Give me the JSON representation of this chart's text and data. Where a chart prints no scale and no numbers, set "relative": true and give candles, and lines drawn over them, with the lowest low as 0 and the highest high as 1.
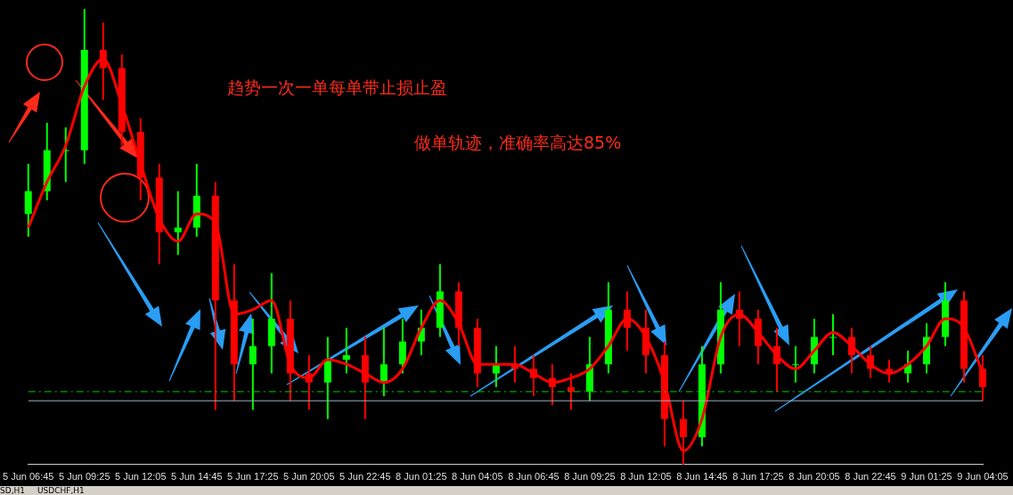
{
  "chart_data": {
    "type": "candlestick",
    "relative": true,
    "grid": false,
    "legend": false,
    "categories": [
      "5 Jun 06:45",
      null,
      null,
      "5 Jun 09:25",
      null,
      null,
      "5 Jun 12:05",
      null,
      null,
      "5 Jun 14:45",
      null,
      null,
      "5 Jun 17:25",
      null,
      null,
      "5 Jun 20:05",
      null,
      null,
      "5 Jun 22:45",
      null,
      null,
      "8 Jun 01:25",
      null,
      null,
      "8 Jun 04:05",
      null,
      null,
      "8 Jun 06:45",
      null,
      null,
      "8 Jun 09:25",
      null,
      null,
      "8 Jun 12:05",
      null,
      null,
      "8 Jun 14:45",
      null,
      null,
      "8 Jun 17:25",
      null,
      null,
      "8 Jun 20:05",
      null,
      null,
      "8 Jun 22:45",
      null,
      null,
      "9 Jun 01:25",
      null,
      null,
      "9 Jun 04:05"
    ],
    "series": [
      {
        "colors": [
          "#00ff00",
          "#00ff00",
          "#00ff00",
          "#00ff00",
          "#ff0000",
          "#ff0000",
          "#ff0000",
          "#ff0000",
          "#00ff00",
          "#00ff00",
          "#ff0000",
          "#ff0000",
          "#00ff00",
          "#00ff00",
          "#ff0000",
          "#ff0000",
          "#00ff00",
          "#00ff00",
          "#ff0000",
          "#00ff00",
          "#00ff00",
          "#00ff00",
          "#00ff00",
          "#ff0000",
          "#ff0000",
          "#00ff00",
          "#ff0000",
          "#ff0000",
          "#ff0000",
          "#ff0000",
          "#00ff00",
          "#00ff00",
          "#ff0000",
          "#ff0000",
          "#ff0000",
          "#ff0000",
          "#00ff00",
          "#00ff00",
          "#ff0000",
          "#ff0000",
          "#ff0000",
          "#00ff00",
          "#00ff00",
          "#00ff00",
          "#ff0000",
          "#ff0000",
          "#ff0000",
          "#00ff00",
          "#00ff00",
          "#00ff00",
          "#ff0000",
          "#ff0000"
        ],
        "ohlc": [
          [
            0.55,
            0.66,
            0.5,
            0.6
          ],
          [
            0.6,
            0.75,
            0.58,
            0.69
          ],
          [
            0.69,
            0.74,
            0.62,
            0.69
          ],
          [
            0.69,
            1.0,
            0.66,
            0.91
          ],
          [
            0.91,
            0.97,
            0.8,
            0.87
          ],
          [
            0.87,
            0.9,
            0.7,
            0.73
          ],
          [
            0.73,
            0.76,
            0.58,
            0.63
          ],
          [
            0.63,
            0.66,
            0.44,
            0.51
          ],
          [
            0.51,
            0.6,
            0.46,
            0.52
          ],
          [
            0.52,
            0.66,
            0.5,
            0.59
          ],
          [
            0.59,
            0.62,
            0.12,
            0.36
          ],
          [
            0.36,
            0.44,
            0.14,
            0.22
          ],
          [
            0.22,
            0.32,
            0.12,
            0.26
          ],
          [
            0.26,
            0.42,
            0.2,
            0.32
          ],
          [
            0.32,
            0.36,
            0.14,
            0.2
          ],
          [
            0.2,
            0.24,
            0.12,
            0.18
          ],
          [
            0.18,
            0.28,
            0.1,
            0.23
          ],
          [
            0.23,
            0.3,
            0.2,
            0.24
          ],
          [
            0.24,
            0.28,
            0.1,
            0.18
          ],
          [
            0.18,
            0.3,
            0.15,
            0.22
          ],
          [
            0.22,
            0.32,
            0.2,
            0.27
          ],
          [
            0.27,
            0.34,
            0.24,
            0.3
          ],
          [
            0.3,
            0.44,
            0.28,
            0.38
          ],
          [
            0.38,
            0.4,
            0.26,
            0.3
          ],
          [
            0.3,
            0.32,
            0.17,
            0.2
          ],
          [
            0.2,
            0.26,
            0.17,
            0.22
          ],
          [
            0.22,
            0.26,
            0.18,
            0.21
          ],
          [
            0.21,
            0.24,
            0.15,
            0.19
          ],
          [
            0.19,
            0.22,
            0.13,
            0.17
          ],
          [
            0.17,
            0.2,
            0.12,
            0.16
          ],
          [
            0.16,
            0.28,
            0.14,
            0.22
          ],
          [
            0.22,
            0.4,
            0.2,
            0.34
          ],
          [
            0.34,
            0.38,
            0.25,
            0.3
          ],
          [
            0.3,
            0.34,
            0.2,
            0.24
          ],
          [
            0.24,
            0.27,
            0.04,
            0.1
          ],
          [
            0.1,
            0.14,
            0,
            0.06
          ],
          [
            0.06,
            0.26,
            0.04,
            0.22
          ],
          [
            0.22,
            0.4,
            0.2,
            0.34
          ],
          [
            0.34,
            0.38,
            0.26,
            0.32
          ],
          [
            0.32,
            0.34,
            0.22,
            0.26
          ],
          [
            0.26,
            0.3,
            0.16,
            0.22
          ],
          [
            0.22,
            0.26,
            0.18,
            0.22
          ],
          [
            0.22,
            0.32,
            0.2,
            0.28
          ],
          [
            0.28,
            0.33,
            0.24,
            0.28
          ],
          [
            0.28,
            0.3,
            0.2,
            0.24
          ],
          [
            0.24,
            0.26,
            0.19,
            0.21
          ],
          [
            0.21,
            0.23,
            0.18,
            0.2
          ],
          [
            0.2,
            0.25,
            0.18,
            0.22
          ],
          [
            0.22,
            0.31,
            0.2,
            0.28
          ],
          [
            0.28,
            0.4,
            0.26,
            0.36
          ],
          [
            0.36,
            0.38,
            0.18,
            0.21
          ],
          [
            0.21,
            0.24,
            0.14,
            0.17
          ]
        ]
      },
      {
        "type": "line",
        "color": "#ff0000",
        "values": [
          0.52,
          0.62,
          0.7,
          0.83,
          0.89,
          0.79,
          0.66,
          0.54,
          0.49,
          0.55,
          0.53,
          0.33,
          0.34,
          0.36,
          0.22,
          0.19,
          0.23,
          0.22,
          0.2,
          0.18,
          0.21,
          0.3,
          0.36,
          0.31,
          0.22,
          0.22,
          0.22,
          0.2,
          0.18,
          0.19,
          0.21,
          0.26,
          0.32,
          0.28,
          0.18,
          0.03,
          0.1,
          0.28,
          0.33,
          0.29,
          0.24,
          0.21,
          0.25,
          0.29,
          0.26,
          0.22,
          0.2,
          0.22,
          0.26,
          0.32,
          0.3,
          0.2
        ]
      }
    ],
    "ref_lines": [
      {
        "axis": "y",
        "value": 0.16,
        "color": "#00cc00",
        "line_style": "dashed"
      },
      {
        "axis": "y",
        "value": 0.14,
        "color": "#a0b0c0",
        "line_style": "solid"
      }
    ],
    "annotations": [
      "趋势一次一单每单带止损止盈",
      "做单轨迹，准确率高达85%",
      "SD,H1",
      "USDCHF,H1"
    ]
  }
}
